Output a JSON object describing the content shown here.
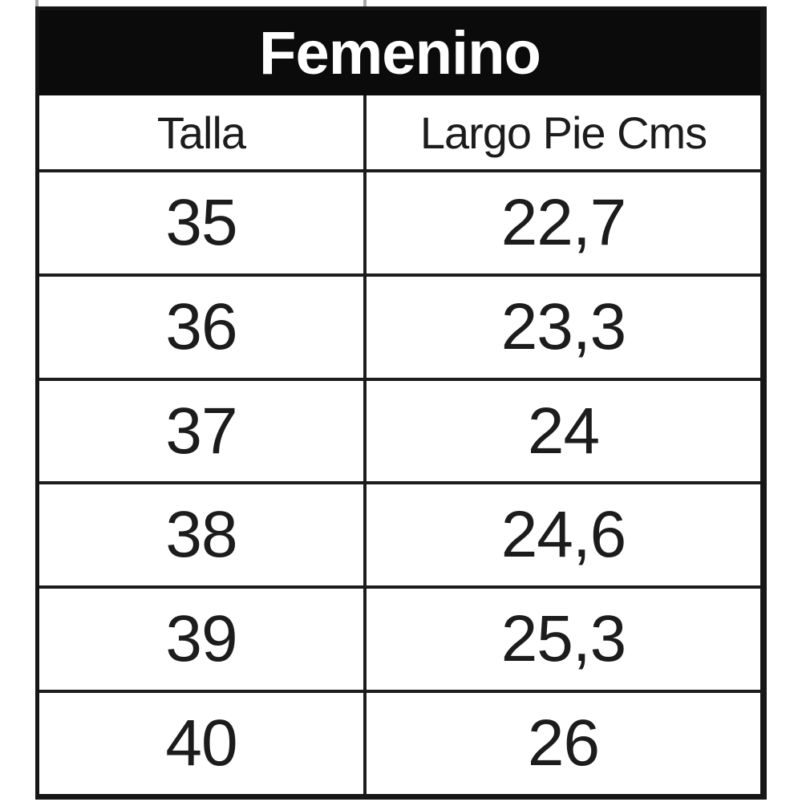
{
  "size_chart": {
    "title": "Femenino",
    "columns": [
      {
        "label": "Talla"
      },
      {
        "label": "Largo Pie Cms"
      }
    ],
    "rows": [
      {
        "talla": "35",
        "largo_pie_cms": "22,7"
      },
      {
        "talla": "36",
        "largo_pie_cms": "23,3"
      },
      {
        "talla": "37",
        "largo_pie_cms": "24"
      },
      {
        "talla": "38",
        "largo_pie_cms": "24,6"
      },
      {
        "talla": "39",
        "largo_pie_cms": "25,3"
      },
      {
        "talla": "40",
        "largo_pie_cms": "26"
      }
    ],
    "colors": {
      "title_background": "#0b0b0b",
      "title_text": "#ffffff",
      "body_text": "#1c1c1c",
      "border": "#161616",
      "background": "#ffffff"
    }
  }
}
